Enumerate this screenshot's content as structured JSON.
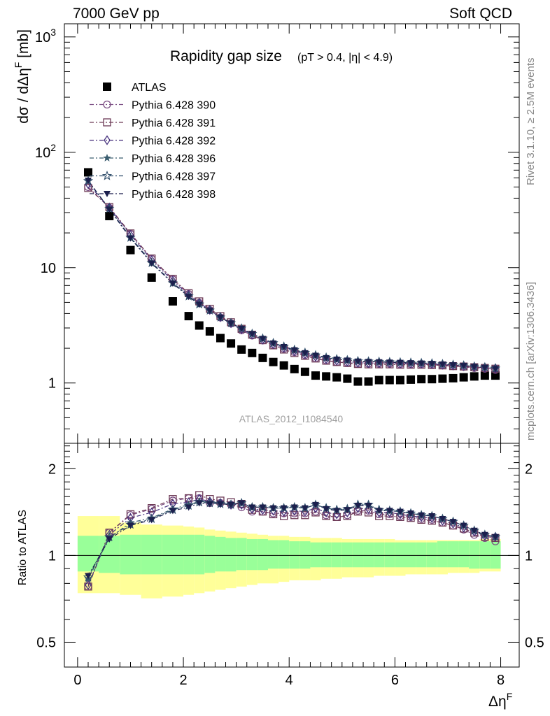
{
  "header": {
    "left": "7000 GeV pp",
    "right": "Soft QCD"
  },
  "side_labels": {
    "rivet": "Rivet 3.1.10, ≥ 2.5M events",
    "mcplots": "mcplots.cern.ch [arXiv:1306.3436]"
  },
  "watermark": "ATLAS_2012_I1084540",
  "colors": {
    "data": "#000000",
    "p390": "#7b4d83",
    "p391": "#6d3a56",
    "p392": "#47327e",
    "p396": "#3a5d6f",
    "p397": "#2f4d6a",
    "p398": "#1c1f4d",
    "band_stat": "#99ff99",
    "band_total": "#ffff99"
  },
  "chart_data": [
    {
      "type": "scatter",
      "panel": "main",
      "title_main": "Rapidity gap size",
      "title_sub": "(pT > 0.4, |η| < 4.9)",
      "ylabel": "dσ / dΔη^F [mb]",
      "yscale": "log",
      "ylim": [
        0.3,
        1300
      ],
      "xlim": [
        -0.25,
        8.35
      ],
      "yticks": [
        "1",
        "10",
        "10²",
        "10³"
      ],
      "x": [
        0.2,
        0.6,
        1.0,
        1.4,
        1.8,
        2.1,
        2.3,
        2.5,
        2.7,
        2.9,
        3.1,
        3.3,
        3.5,
        3.7,
        3.9,
        4.1,
        4.3,
        4.5,
        4.7,
        4.9,
        5.1,
        5.3,
        5.5,
        5.7,
        5.9,
        6.1,
        6.3,
        6.5,
        6.7,
        6.9,
        7.1,
        7.3,
        7.5,
        7.7,
        7.9
      ],
      "series": [
        {
          "name": "ATLAS",
          "marker": "filled-square",
          "values": [
            67,
            28,
            14.2,
            8.2,
            5.1,
            3.8,
            3.15,
            2.8,
            2.45,
            2.2,
            1.95,
            1.82,
            1.65,
            1.52,
            1.42,
            1.32,
            1.25,
            1.16,
            1.14,
            1.12,
            1.09,
            1.03,
            1.03,
            1.06,
            1.06,
            1.06,
            1.07,
            1.08,
            1.08,
            1.09,
            1.1,
            1.12,
            1.14,
            1.16,
            1.16
          ]
        },
        {
          "name": "Pythia 6.428 390",
          "marker": "open-circle",
          "values": [
            50,
            33,
            19.6,
            11.9,
            7.9,
            5.9,
            4.95,
            4.28,
            3.7,
            3.28,
            2.86,
            2.58,
            2.34,
            2.13,
            1.98,
            1.85,
            1.74,
            1.64,
            1.57,
            1.52,
            1.5,
            1.47,
            1.47,
            1.47,
            1.47,
            1.45,
            1.45,
            1.45,
            1.44,
            1.42,
            1.4,
            1.38,
            1.35,
            1.33,
            1.3
          ]
        },
        {
          "name": "Pythia 6.428 391",
          "marker": "open-square",
          "values": [
            49,
            33.5,
            19.8,
            12,
            8,
            6,
            5.1,
            4.4,
            3.8,
            3.36,
            2.95,
            2.62,
            2.35,
            2.12,
            1.95,
            1.82,
            1.72,
            1.63,
            1.56,
            1.52,
            1.49,
            1.46,
            1.45,
            1.45,
            1.45,
            1.44,
            1.44,
            1.44,
            1.43,
            1.42,
            1.4,
            1.39,
            1.37,
            1.35,
            1.33
          ]
        },
        {
          "name": "Pythia 6.428 392",
          "marker": "open-diamond",
          "values": [
            53,
            33.2,
            19.2,
            11.6,
            7.7,
            5.8,
            4.95,
            4.3,
            3.72,
            3.3,
            2.93,
            2.63,
            2.38,
            2.17,
            2.02,
            1.89,
            1.78,
            1.69,
            1.61,
            1.56,
            1.53,
            1.5,
            1.49,
            1.49,
            1.49,
            1.47,
            1.47,
            1.47,
            1.46,
            1.44,
            1.42,
            1.4,
            1.38,
            1.36,
            1.34
          ]
        },
        {
          "name": "Pythia 6.428 396",
          "marker": "star",
          "values": [
            56,
            32.3,
            18.4,
            11.1,
            7.4,
            5.7,
            4.85,
            4.28,
            3.72,
            3.32,
            2.97,
            2.67,
            2.43,
            2.22,
            2.07,
            1.94,
            1.83,
            1.74,
            1.66,
            1.61,
            1.58,
            1.55,
            1.54,
            1.53,
            1.52,
            1.51,
            1.5,
            1.49,
            1.48,
            1.46,
            1.44,
            1.42,
            1.39,
            1.37,
            1.34
          ]
        },
        {
          "name": "Pythia 6.428 397",
          "marker": "open-star",
          "values": [
            56.5,
            32.5,
            18.2,
            11,
            7.35,
            5.65,
            4.82,
            4.26,
            3.71,
            3.31,
            2.97,
            2.67,
            2.43,
            2.22,
            2.07,
            1.94,
            1.83,
            1.74,
            1.66,
            1.61,
            1.58,
            1.55,
            1.54,
            1.53,
            1.52,
            1.51,
            1.5,
            1.49,
            1.48,
            1.46,
            1.44,
            1.42,
            1.39,
            1.37,
            1.34
          ]
        },
        {
          "name": "Pythia 6.428 398",
          "marker": "filled-triangle-down",
          "values": [
            57,
            32,
            18,
            10.9,
            7.3,
            5.6,
            4.8,
            4.24,
            3.7,
            3.3,
            2.96,
            2.66,
            2.42,
            2.21,
            2.06,
            1.93,
            1.82,
            1.73,
            1.65,
            1.6,
            1.57,
            1.54,
            1.53,
            1.52,
            1.51,
            1.5,
            1.49,
            1.48,
            1.47,
            1.45,
            1.43,
            1.41,
            1.38,
            1.36,
            1.33
          ]
        }
      ]
    },
    {
      "type": "line",
      "panel": "ratio",
      "ylabel": "Ratio to ATLAS",
      "xlabel": "Δη^F",
      "yscale": "log",
      "ylim": [
        0.41,
        2.45
      ],
      "xlim": [
        -0.25,
        8.35
      ],
      "yticks": [
        "0.5",
        "1",
        "2"
      ],
      "xticks": [
        "0",
        "2",
        "4",
        "6",
        "8"
      ],
      "x": [
        0.2,
        0.6,
        1.0,
        1.4,
        1.8,
        2.1,
        2.3,
        2.5,
        2.7,
        2.9,
        3.1,
        3.3,
        3.5,
        3.7,
        3.9,
        4.1,
        4.3,
        4.5,
        4.7,
        4.9,
        5.1,
        5.3,
        5.5,
        5.7,
        5.9,
        6.1,
        6.3,
        6.5,
        6.7,
        6.9,
        7.1,
        7.3,
        7.5,
        7.7,
        7.9
      ],
      "bands": {
        "x_edges": [
          0.0,
          0.4,
          0.8,
          1.2,
          1.6,
          2.0,
          2.2,
          2.4,
          2.6,
          2.8,
          3.0,
          3.2,
          3.4,
          3.6,
          3.8,
          4.0,
          4.2,
          4.4,
          4.6,
          4.8,
          5.0,
          5.2,
          5.4,
          5.6,
          5.8,
          6.0,
          6.2,
          6.4,
          6.6,
          6.8,
          7.0,
          7.2,
          7.4,
          7.6,
          7.8,
          8.0
        ],
        "stat_hi": [
          1.17,
          1.17,
          1.18,
          1.18,
          1.18,
          1.18,
          1.18,
          1.17,
          1.16,
          1.15,
          1.15,
          1.14,
          1.14,
          1.13,
          1.13,
          1.12,
          1.12,
          1.11,
          1.11,
          1.11,
          1.11,
          1.11,
          1.11,
          1.11,
          1.11,
          1.11,
          1.11,
          1.11,
          1.11,
          1.12,
          1.12,
          1.12,
          1.12,
          1.12,
          1.12
        ],
        "stat_lo": [
          0.88,
          0.87,
          0.86,
          0.86,
          0.86,
          0.86,
          0.86,
          0.87,
          0.88,
          0.88,
          0.89,
          0.89,
          0.89,
          0.9,
          0.9,
          0.9,
          0.9,
          0.91,
          0.91,
          0.91,
          0.91,
          0.91,
          0.91,
          0.91,
          0.91,
          0.91,
          0.91,
          0.91,
          0.91,
          0.91,
          0.91,
          0.91,
          0.9,
          0.9,
          0.9
        ],
        "total_hi": [
          1.37,
          1.37,
          1.3,
          1.28,
          1.27,
          1.26,
          1.25,
          1.23,
          1.22,
          1.21,
          1.2,
          1.19,
          1.18,
          1.17,
          1.17,
          1.16,
          1.16,
          1.15,
          1.15,
          1.15,
          1.14,
          1.14,
          1.14,
          1.14,
          1.14,
          1.13,
          1.13,
          1.13,
          1.13,
          1.13,
          1.13,
          1.13,
          1.13,
          1.14,
          1.14
        ],
        "total_lo": [
          0.74,
          0.74,
          0.73,
          0.71,
          0.72,
          0.73,
          0.74,
          0.75,
          0.76,
          0.77,
          0.78,
          0.79,
          0.8,
          0.8,
          0.81,
          0.82,
          0.82,
          0.82,
          0.83,
          0.83,
          0.84,
          0.84,
          0.84,
          0.85,
          0.85,
          0.85,
          0.86,
          0.86,
          0.86,
          0.86,
          0.87,
          0.87,
          0.87,
          0.88,
          0.88
        ]
      },
      "series": [
        {
          "name": "Pythia 6.428 390",
          "values": [
            0.78,
            1.2,
            1.38,
            1.45,
            1.55,
            1.58,
            1.58,
            1.52,
            1.52,
            1.5,
            1.47,
            1.42,
            1.42,
            1.4,
            1.4,
            1.4,
            1.4,
            1.42,
            1.38,
            1.36,
            1.38,
            1.43,
            1.43,
            1.39,
            1.39,
            1.37,
            1.36,
            1.34,
            1.33,
            1.3,
            1.27,
            1.23,
            1.18,
            1.15,
            1.12
          ]
        },
        {
          "name": "Pythia 6.428 391",
          "values": [
            0.78,
            1.2,
            1.39,
            1.46,
            1.57,
            1.58,
            1.62,
            1.57,
            1.55,
            1.53,
            1.51,
            1.44,
            1.42,
            1.39,
            1.37,
            1.38,
            1.38,
            1.41,
            1.37,
            1.36,
            1.37,
            1.42,
            1.41,
            1.37,
            1.37,
            1.36,
            1.35,
            1.33,
            1.32,
            1.3,
            1.27,
            1.24,
            1.2,
            1.16,
            1.15
          ]
        },
        {
          "name": "Pythia 6.428 392",
          "values": [
            0.79,
            1.18,
            1.35,
            1.41,
            1.51,
            1.53,
            1.57,
            1.54,
            1.52,
            1.5,
            1.5,
            1.45,
            1.44,
            1.43,
            1.42,
            1.43,
            1.42,
            1.46,
            1.41,
            1.39,
            1.41,
            1.46,
            1.45,
            1.41,
            1.41,
            1.39,
            1.37,
            1.36,
            1.35,
            1.32,
            1.29,
            1.25,
            1.21,
            1.17,
            1.16
          ]
        },
        {
          "name": "Pythia 6.428 396",
          "values": [
            0.83,
            1.15,
            1.3,
            1.35,
            1.45,
            1.5,
            1.54,
            1.53,
            1.52,
            1.51,
            1.52,
            1.47,
            1.47,
            1.46,
            1.46,
            1.47,
            1.46,
            1.5,
            1.46,
            1.44,
            1.45,
            1.5,
            1.5,
            1.44,
            1.43,
            1.42,
            1.4,
            1.38,
            1.37,
            1.34,
            1.31,
            1.27,
            1.22,
            1.18,
            1.16
          ]
        },
        {
          "name": "Pythia 6.428 397",
          "values": [
            0.84,
            1.16,
            1.28,
            1.34,
            1.44,
            1.49,
            1.53,
            1.52,
            1.51,
            1.5,
            1.52,
            1.47,
            1.47,
            1.46,
            1.46,
            1.47,
            1.46,
            1.5,
            1.46,
            1.44,
            1.45,
            1.5,
            1.5,
            1.44,
            1.43,
            1.42,
            1.4,
            1.38,
            1.37,
            1.34,
            1.31,
            1.27,
            1.22,
            1.18,
            1.16
          ]
        },
        {
          "name": "Pythia 6.428 398",
          "values": [
            0.85,
            1.14,
            1.27,
            1.33,
            1.43,
            1.47,
            1.52,
            1.51,
            1.51,
            1.5,
            1.52,
            1.47,
            1.47,
            1.46,
            1.46,
            1.47,
            1.46,
            1.5,
            1.45,
            1.43,
            1.44,
            1.49,
            1.49,
            1.43,
            1.43,
            1.42,
            1.4,
            1.38,
            1.37,
            1.34,
            1.31,
            1.27,
            1.22,
            1.18,
            1.16
          ]
        }
      ]
    }
  ]
}
